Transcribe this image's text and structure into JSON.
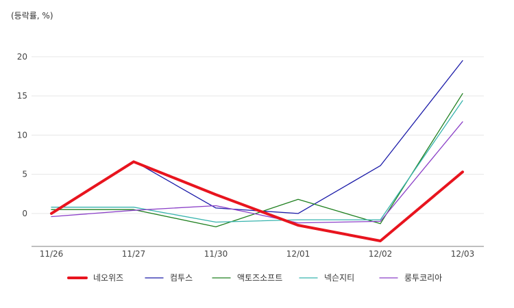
{
  "chart_data": {
    "type": "line",
    "unit_label": "(등락률, %)",
    "categories": [
      "11/26",
      "11/27",
      "11/30",
      "12/01",
      "12/02",
      "12/03"
    ],
    "ylim": [
      -4.2,
      22
    ],
    "yticks": [
      0,
      5,
      10,
      15,
      20
    ],
    "grid": true,
    "legend_position": "bottom",
    "series": [
      {
        "name": "네오위즈",
        "color": "#e8141e",
        "emphasis": true,
        "values": [
          0.0,
          6.6,
          2.4,
          -1.5,
          -3.5,
          5.3
        ]
      },
      {
        "name": "컴투스",
        "color": "#1a1aa8",
        "values": [
          0.0,
          6.7,
          0.7,
          0.0,
          6.1,
          19.5
        ]
      },
      {
        "name": "액토즈소프트",
        "color": "#1e7f1e",
        "values": [
          0.5,
          0.5,
          -1.7,
          1.8,
          -1.3,
          15.3
        ]
      },
      {
        "name": "넥슨지티",
        "color": "#36b3ad",
        "values": [
          0.8,
          0.8,
          -1.1,
          -0.8,
          -0.8,
          14.4
        ]
      },
      {
        "name": "룽투코리아",
        "color": "#8a3fc7",
        "values": [
          -0.4,
          0.4,
          1.0,
          -1.2,
          -1.0,
          11.7
        ]
      }
    ]
  }
}
